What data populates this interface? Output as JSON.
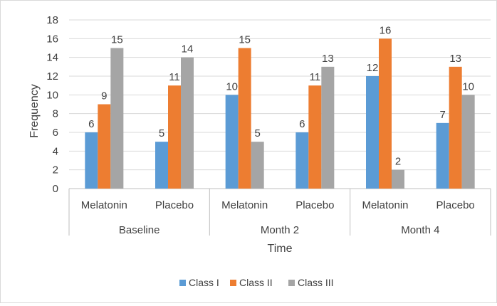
{
  "chart_data": {
    "type": "bar",
    "title": "",
    "xlabel": "Time",
    "ylabel": "Frequency",
    "ylim": [
      0,
      18
    ],
    "yticks": [
      0,
      2,
      4,
      6,
      8,
      10,
      12,
      14,
      16,
      18
    ],
    "grid": true,
    "legend_position": "bottom",
    "groups": [
      {
        "label": "Baseline",
        "categories": [
          "Melatonin",
          "Placebo"
        ]
      },
      {
        "label": "Month 2",
        "categories": [
          "Melatonin",
          "Placebo"
        ]
      },
      {
        "label": "Month 4",
        "categories": [
          "Melatonin",
          "Placebo"
        ]
      }
    ],
    "categories": [
      "Melatonin",
      "Placebo",
      "Melatonin",
      "Placebo",
      "Melatonin",
      "Placebo"
    ],
    "series": [
      {
        "name": "Class I",
        "color": "#5b9bd5",
        "values": [
          6,
          5,
          10,
          6,
          12,
          7
        ]
      },
      {
        "name": "Class II",
        "color": "#ed7d31",
        "values": [
          9,
          11,
          15,
          11,
          16,
          13
        ]
      },
      {
        "name": "Class III",
        "color": "#a5a5a5",
        "values": [
          15,
          14,
          5,
          13,
          2,
          10
        ]
      }
    ]
  }
}
